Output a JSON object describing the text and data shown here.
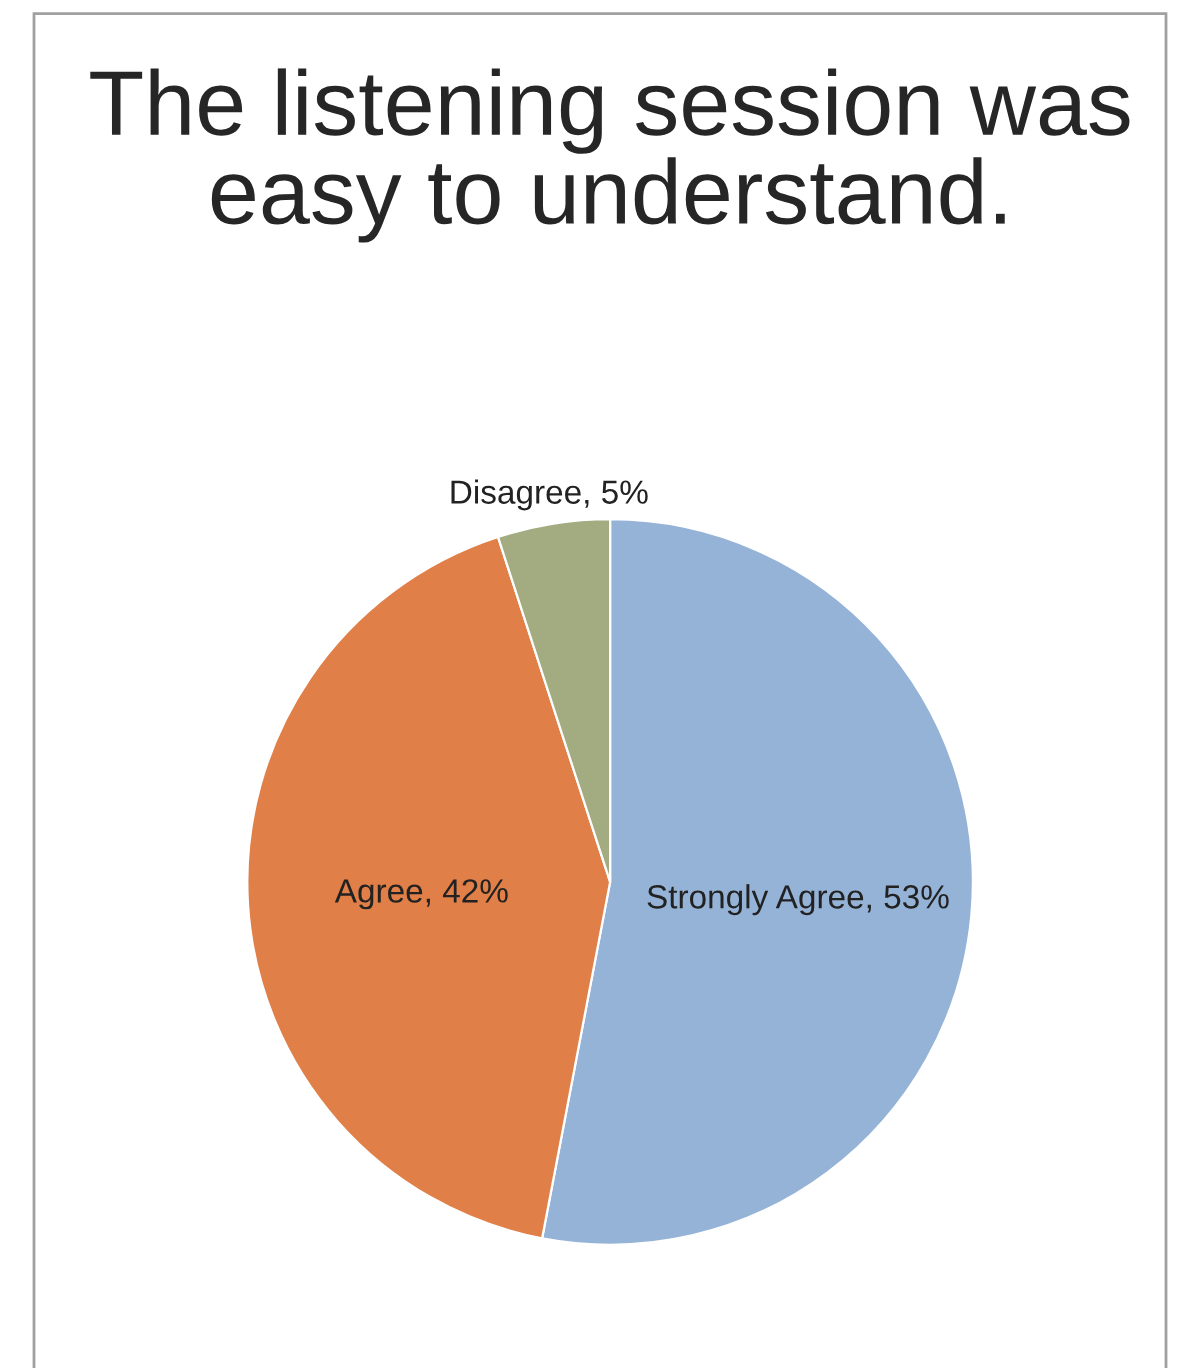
{
  "chart_data": {
    "type": "pie",
    "title": "The listening session was easy to understand.",
    "categories": [
      "Strongly Agree",
      "Agree",
      "Disagree"
    ],
    "values": [
      53,
      42,
      5
    ],
    "value_labels": [
      "53%",
      "42%",
      "5%"
    ],
    "colors": [
      "#95b3d7",
      "#e07f47",
      "#a3ab80"
    ],
    "legend": false
  }
}
